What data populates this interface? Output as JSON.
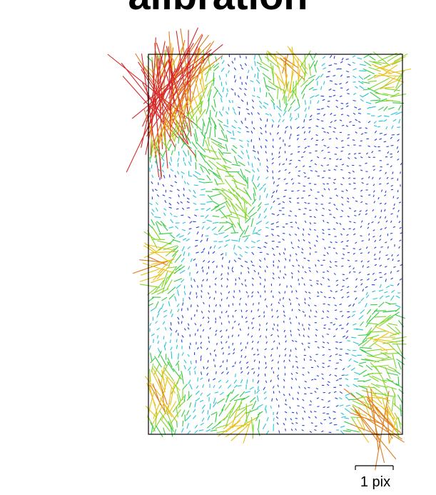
{
  "chart_data": {
    "type": "vector-field",
    "title": "alibration",
    "scale_label": "1 pix",
    "frame": "sensor outline",
    "color_scale": [
      "#1f3fd8",
      "#22c4d8",
      "#2ecc40",
      "#7fd62a",
      "#e8c21a",
      "#e07a1a",
      "#d62828"
    ],
    "grid": false,
    "legend": "none"
  }
}
